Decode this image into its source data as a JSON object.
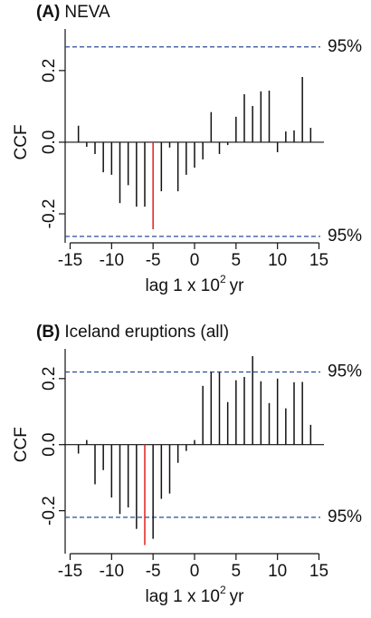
{
  "chart_data": [
    {
      "type": "bar",
      "label": "(A)",
      "title": "NEVA",
      "ylabel": "CCF",
      "xlabel": {
        "text": "lag 1 x 10",
        "sup": "2",
        "unit": "yr"
      },
      "x": [
        -14,
        -13,
        -12,
        -11,
        -10,
        -9,
        -8,
        -7,
        -6,
        -5,
        -4,
        -3,
        -2,
        -1,
        0,
        1,
        2,
        3,
        4,
        5,
        6,
        7,
        8,
        9,
        10,
        11,
        12,
        13,
        14
      ],
      "values": [
        0.046,
        -0.013,
        -0.033,
        -0.084,
        -0.091,
        -0.17,
        -0.12,
        -0.18,
        -0.18,
        -0.243,
        -0.137,
        -0.015,
        -0.137,
        -0.091,
        -0.071,
        -0.048,
        0.084,
        -0.033,
        -0.008,
        0.071,
        0.134,
        0.101,
        0.142,
        0.144,
        -0.028,
        0.03,
        0.033,
        0.182,
        0.04
      ],
      "color": "#111111",
      "highlight": {
        "x": -5,
        "color": "#e0201b"
      },
      "ci": [
        0.266,
        -0.263
      ],
      "ci_label": "95%",
      "ci_color": "#2b4a9b",
      "xlim": [
        -15.6,
        15.6
      ],
      "xticks": [
        -15,
        -10,
        -5,
        0,
        5,
        10,
        15
      ],
      "ylim": [
        -0.281,
        0.316
      ],
      "yticks": [
        -0.2,
        {
          "value": 0,
          "label": "0.0"
        },
        0.2
      ]
    },
    {
      "type": "bar",
      "label": "(B)",
      "title": "Iceland eruptions (all)",
      "ylabel": "CCF",
      "xlabel": {
        "text": "lag 1 x 10",
        "sup": "2",
        "unit": "yr"
      },
      "x": [
        -14,
        -13,
        -12,
        -11,
        -10,
        -9,
        -8,
        -7,
        -6,
        -5,
        -4,
        -3,
        -2,
        -1,
        0,
        1,
        2,
        3,
        4,
        5,
        6,
        7,
        8,
        9,
        10,
        11,
        12,
        13,
        14
      ],
      "values": [
        -0.027,
        0.014,
        -0.12,
        -0.077,
        -0.16,
        -0.21,
        -0.19,
        -0.255,
        -0.304,
        -0.285,
        -0.164,
        -0.148,
        -0.055,
        -0.019,
        0.014,
        0.178,
        0.219,
        0.219,
        0.129,
        0.195,
        0.205,
        0.268,
        0.192,
        0.126,
        0.2,
        0.11,
        0.189,
        0.19,
        0.06
      ],
      "color": "#111111",
      "highlight": {
        "x": -6,
        "color": "#e0201b"
      },
      "ci": [
        0.22,
        -0.22
      ],
      "ci_label": "95%",
      "ci_color": "#2b4a9b",
      "xlim": [
        -15.6,
        15.6
      ],
      "xticks": [
        -15,
        -10,
        -5,
        0,
        5,
        10,
        15
      ],
      "ylim": [
        -0.33,
        0.29
      ],
      "yticks": [
        -0.2,
        {
          "value": 0,
          "label": "0.0"
        },
        0.2
      ]
    }
  ]
}
